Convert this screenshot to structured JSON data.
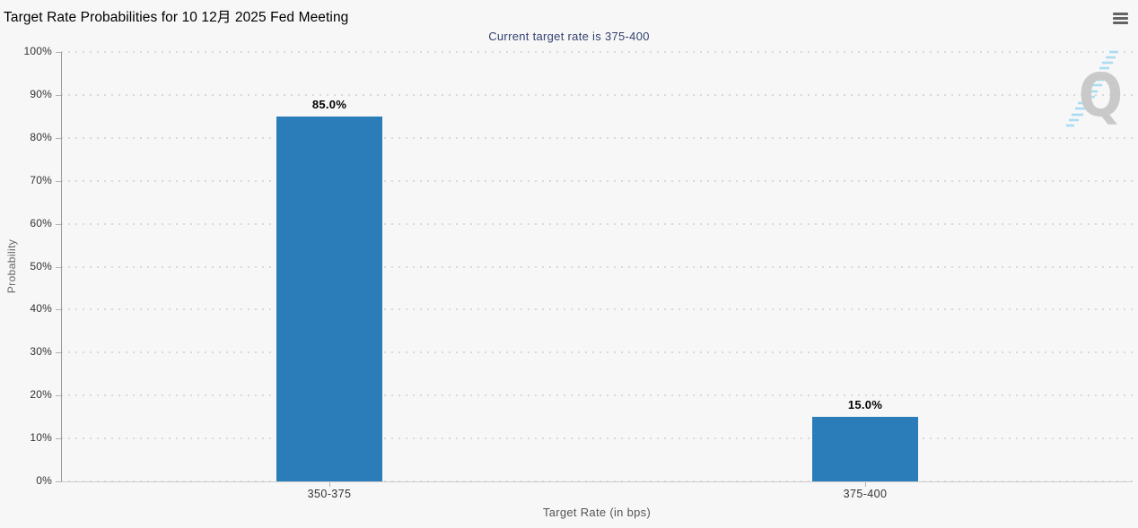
{
  "header": {
    "title": "Target Rate Probabilities for 10 12月 2025 Fed Meeting",
    "subtitle": "Current target rate is 375-400",
    "menu_icon": "hamburger-icon"
  },
  "chart_data": {
    "type": "bar",
    "title": "Target Rate Probabilities for 10 12月 2025 Fed Meeting",
    "subtitle": "Current target rate is 375-400",
    "categories": [
      "350-375",
      "375-400"
    ],
    "values": [
      85.0,
      15.0
    ],
    "value_labels": [
      "85.0%",
      "15.0%"
    ],
    "xlabel": "Target Rate (in bps)",
    "ylabel": "Probability",
    "ylim": [
      0,
      100
    ],
    "ytick_step": 10,
    "ytick_labels": [
      "0%",
      "10%",
      "20%",
      "30%",
      "40%",
      "50%",
      "60%",
      "70%",
      "80%",
      "90%",
      "100%"
    ],
    "grid": "horizontal-dotted",
    "legend_position": "none",
    "bar_color": "#2a7db8"
  },
  "watermark": {
    "letter": "Q"
  },
  "colors": {
    "background": "#f7f7f7",
    "bar": "#2a7db8",
    "subtitle_text": "#334270",
    "grid_dot": "#d9d9d9",
    "y_axis_line": "#9a9a9a",
    "x_axis_line": "#cccccc",
    "tick": "#b3b3b3",
    "watermark_gray": "#c9c9c9",
    "watermark_blue": "#aadcf2"
  }
}
